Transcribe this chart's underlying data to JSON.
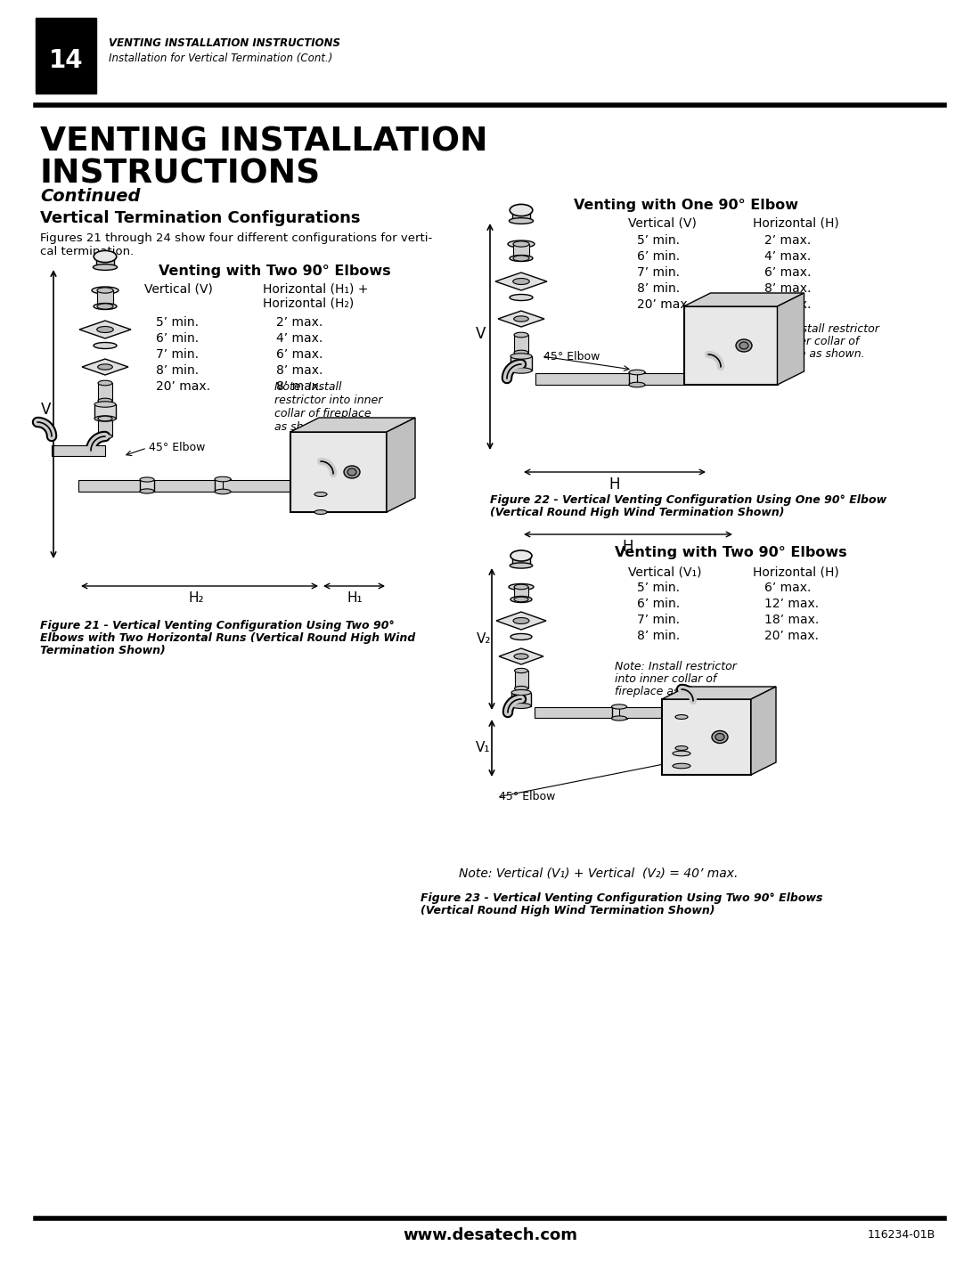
{
  "page_title_line1": "VENTING INSTALLATION",
  "page_title_line2": "INSTRUCTIONS",
  "page_subtitle": "Continued",
  "section_heading": "Vertical Termination Configurations",
  "intro_text_line1": "Figures 21 through 24 show four different configurations for verti-",
  "intro_text_line2": "cal termination.",
  "header_page_num": "14",
  "header_line1": "VENTING INSTALLATION INSTRUCTIONS",
  "header_line2": "Installation for Vertical Termination (Cont.)",
  "footer_website": "www.desatech.com",
  "footer_doc_num": "116234-01B",
  "fig21_title": "Venting with Two 90° Elbows",
  "fig21_col1_header": "Vertical (V)",
  "fig21_col2_header": "Horizontal (H₁) +",
  "fig21_col2_header2": "Horizontal (H₂)",
  "fig21_data": [
    [
      "5’ min.",
      "2’ max."
    ],
    [
      "6’ min.",
      "4’ max."
    ],
    [
      "7’ min.",
      "6’ max."
    ],
    [
      "8’ min.",
      "8’ max."
    ],
    [
      "20’ max.",
      "8’ max."
    ]
  ],
  "fig21_note": "Note: Install\nrestrictor into inner\ncollar of fireplace\nas shown.",
  "fig21_elbow_label": "45° Elbow",
  "fig21_caption_line1": "Figure 21 - Vertical Venting Configuration Using Two 90°",
  "fig21_caption_line2": "Elbows with Two Horizontal Runs (Vertical Round High Wind",
  "fig21_caption_line3": "Termination Shown)",
  "fig22_title": "Venting with One 90° Elbow",
  "fig22_col1_header": "Vertical (V)",
  "fig22_col2_header": "Horizontal (H)",
  "fig22_data": [
    [
      "5’ min.",
      "2’ max."
    ],
    [
      "6’ min.",
      "4’ max."
    ],
    [
      "7’ min.",
      "6’ max."
    ],
    [
      "8’ min.",
      "8’ max."
    ],
    [
      "20’ max.",
      "8’ max."
    ]
  ],
  "fig22_note_line1": "Note: Install restrictor",
  "fig22_note_line2": "into inner collar of",
  "fig22_note_line3": "fireplace as shown.",
  "fig22_elbow_label": "45° Elbow",
  "fig22_caption_line1": "Figure 22 - Vertical Venting Configuration Using One 90° Elbow",
  "fig22_caption_line2": "(Vertical Round High Wind Termination Shown)",
  "fig23_title": "Venting with Two 90° Elbows",
  "fig23_col1_header": "Vertical (V₁)",
  "fig23_col2_header": "Horizontal (H)",
  "fig23_data": [
    [
      "5’ min.",
      "6’ max."
    ],
    [
      "6’ min.",
      "12’ max."
    ],
    [
      "7’ min.",
      "18’ max."
    ],
    [
      "8’ min.",
      "20’ max."
    ]
  ],
  "fig23_note_line1": "Note: Install restrictor",
  "fig23_note_line2": "into inner collar of",
  "fig23_note_line3": "fireplace as shown.",
  "fig23_elbow_label": "45° Elbow",
  "fig23_note2": "Note: Vertical (V₁) + Vertical  (V₂) = 40’ max.",
  "fig23_caption_line1": "Figure 23 - Vertical Venting Configuration Using Two 90° Elbows",
  "fig23_caption_line2": "(Vertical Round High Wind Termination Shown)",
  "background_color": "#ffffff",
  "text_color": "#000000"
}
